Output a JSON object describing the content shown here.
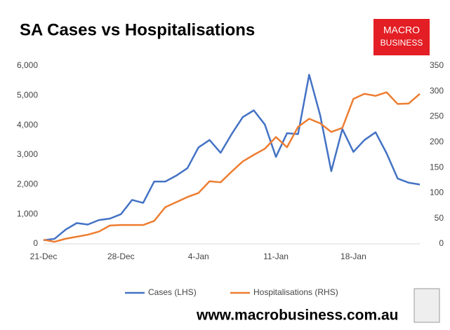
{
  "chart_data": {
    "type": "line",
    "title": "SA Cases vs Hospitalisations",
    "logo": [
      "MACRO",
      "BUSINESS"
    ],
    "footer": "www.macrobusiness.com.au",
    "categories": [
      "21-Dec",
      null,
      null,
      null,
      null,
      null,
      null,
      "28-Dec",
      null,
      null,
      null,
      null,
      null,
      null,
      "4-Jan",
      null,
      null,
      null,
      null,
      null,
      null,
      "11-Jan",
      null,
      null,
      null,
      null,
      null,
      null,
      "18-Jan",
      null,
      null,
      null,
      null,
      null,
      null
    ],
    "series": [
      {
        "name": "Cases (LHS)",
        "color": "#4472c4",
        "axis": "y",
        "values": [
          120,
          170,
          480,
          700,
          650,
          800,
          850,
          1000,
          1480,
          1380,
          2100,
          2100,
          2300,
          2550,
          3250,
          3500,
          3070,
          3700,
          4270,
          4500,
          4020,
          2930,
          3730,
          3700,
          5700,
          4330,
          2450,
          3870,
          3100,
          3500,
          3760,
          3050,
          2200,
          2060,
          2000
        ]
      },
      {
        "name": "Hospitalisations (RHS)",
        "color": "#ed7d31",
        "axis": "y2",
        "values": [
          8,
          4,
          10,
          14,
          18,
          24,
          36,
          37,
          37,
          37,
          45,
          72,
          82,
          92,
          100,
          123,
          121,
          142,
          162,
          175,
          187,
          210,
          190,
          230,
          246,
          237,
          220,
          228,
          285,
          295,
          291,
          298,
          275,
          276,
          295
        ]
      }
    ],
    "ylim": [
      0,
      6000
    ],
    "yticks": [
      0,
      {
        "value": 1000,
        "label": "1,000"
      },
      {
        "value": 2000,
        "label": "2,000"
      },
      {
        "value": 3000,
        "label": "3,000"
      },
      {
        "value": 4000,
        "label": "4,000"
      },
      {
        "value": 5000,
        "label": "5,000"
      },
      {
        "value": 6000,
        "label": "6,000"
      }
    ],
    "y2lim": [
      0,
      350
    ],
    "y2ticks": [
      0,
      50,
      100,
      150,
      200,
      250,
      300,
      350
    ],
    "legend": "bottom"
  }
}
